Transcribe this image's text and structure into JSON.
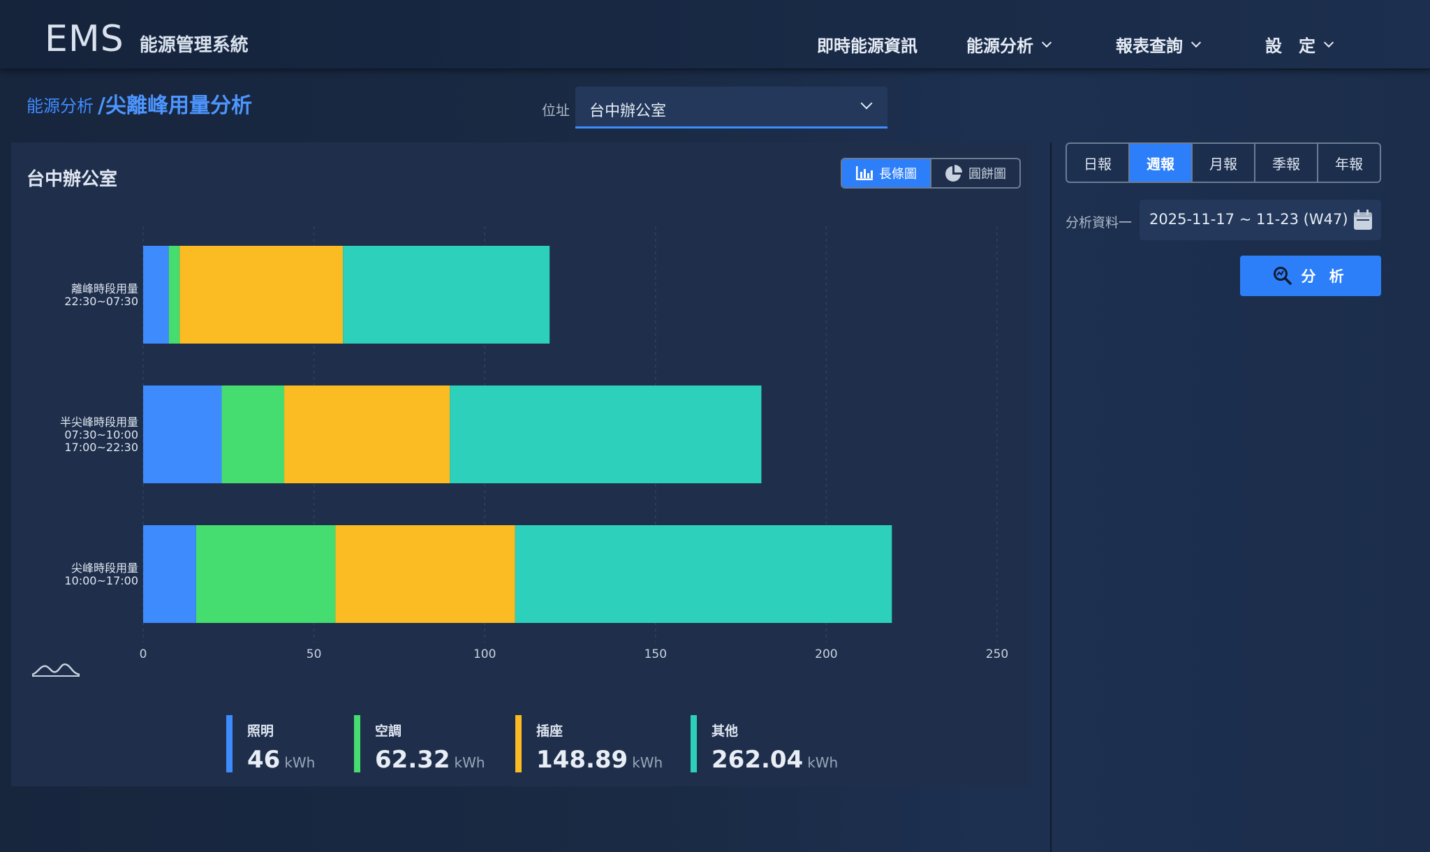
{
  "header": {
    "logo_main": "EMS",
    "logo_sub": "能源管理系統",
    "nav": [
      "即時能源資訊",
      "能源分析",
      "報表查詢",
      "設　定"
    ]
  },
  "breadcrumb": {
    "parent": "能源分析",
    "current": "/尖離峰用量分析"
  },
  "location": {
    "label": "位址",
    "value": "台中辦公室"
  },
  "panel": {
    "title": "台中辦公室",
    "toggle": {
      "bar_label": "長條圖",
      "pie_label": "圓餅圖",
      "active": "bar"
    }
  },
  "colors": {
    "lighting": "#3d8bfd",
    "ac": "#45dd70",
    "outlet": "#fbbb22",
    "other": "#2dd1bb",
    "accent": "#2d7ff9"
  },
  "chart_data": {
    "type": "bar",
    "orientation": "horizontal",
    "stacked": true,
    "categories": [
      [
        "離峰時段用量",
        "22:30~07:30"
      ],
      [
        "半尖峰時段用量",
        "07:30~10:00",
        "17:00~22:30"
      ],
      [
        "尖峰時段用量",
        "10:00~17:00"
      ]
    ],
    "series": [
      {
        "name": "照明",
        "values": [
          7.5,
          23,
          15.5
        ]
      },
      {
        "name": "空調",
        "values": [
          3.2,
          18.3,
          40.8
        ]
      },
      {
        "name": "插座",
        "values": [
          47.8,
          48.5,
          52.6
        ]
      },
      {
        "name": "其他",
        "values": [
          60.5,
          91.2,
          110.3
        ]
      }
    ],
    "xlim": [
      0,
      250
    ],
    "xticks": [
      0,
      50,
      100,
      150,
      200,
      250
    ],
    "grid": true
  },
  "legend": [
    {
      "name": "照明",
      "value": "46",
      "unit": "kWh"
    },
    {
      "name": "空調",
      "value": "62.32",
      "unit": "kWh"
    },
    {
      "name": "插座",
      "value": "148.89",
      "unit": "kWh"
    },
    {
      "name": "其他",
      "value": "262.04",
      "unit": "kWh"
    }
  ],
  "right": {
    "periods": [
      "日報",
      "週報",
      "月報",
      "季報",
      "年報"
    ],
    "active_period": "週報",
    "date_label": "分析資料一",
    "date_value": "2025-11-17 ~ 11-23 (W47)",
    "analyze_label": "分 析"
  }
}
